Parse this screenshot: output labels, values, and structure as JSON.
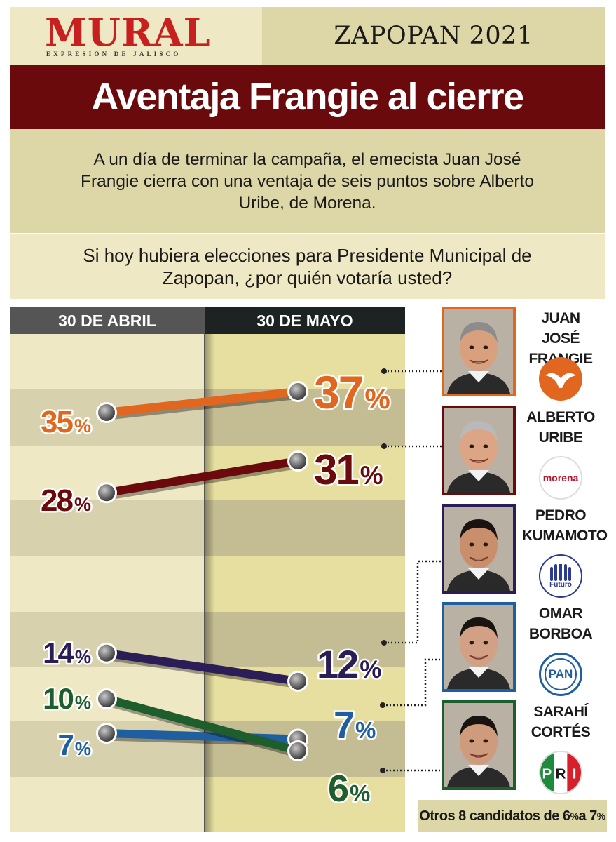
{
  "masthead": {
    "logo": "MURAL",
    "tagline": "EXPRESIÓN DE JALISCO",
    "edition": "ZAPOPAN 2021"
  },
  "headline": "Aventaja Frangie al cierre",
  "lede": "A un día de terminar la campaña, el emecista Juan José Frangie cierra con una ventaja de seis puntos sobre Alberto Uribe, de Morena.",
  "question": "Si hoy hubiera elecciones para Presidente Municipal de Zapopan, ¿por quién votaría usted?",
  "chart_data": {
    "type": "line",
    "x": [
      "30 DE ABRIL",
      "30 DE MAYO"
    ],
    "unit": "%",
    "series": [
      {
        "name": "JUAN JOSÉ FRANGIE",
        "values": [
          35,
          37
        ],
        "color": "#e1661f",
        "party": "MC"
      },
      {
        "name": "ALBERTO URIBE",
        "values": [
          28,
          31
        ],
        "color": "#6b0a0d",
        "party": "morena"
      },
      {
        "name": "PEDRO KUMAMOTO",
        "values": [
          14,
          12
        ],
        "color": "#2b1e57",
        "party": "Futuro"
      },
      {
        "name": "OMAR BORBOA",
        "values": [
          7,
          7
        ],
        "color": "#1f5fa0",
        "party": "PAN"
      },
      {
        "name": "SARAHÍ CORTÉS",
        "values": [
          10,
          6
        ],
        "color": "#1e5d2c",
        "party": "PRI"
      }
    ],
    "footnote": "Otros 8 candidatos de 6% a 7%"
  },
  "candidates": [
    {
      "name_line1": "JUAN JOSÉ",
      "name_line2": "FRANGIE",
      "party_label": "",
      "frame_color": "#e1661f",
      "logo_icon": "movimiento-ciudadano-eagle-icon"
    },
    {
      "name_line1": "ALBERTO",
      "name_line2": "URIBE",
      "party_label": "morena",
      "frame_color": "#6b0a0d",
      "logo_icon": "morena-logo"
    },
    {
      "name_line1": "PEDRO",
      "name_line2": "KUMAMOTO",
      "party_label": "Futuro",
      "frame_color": "#2b1e57",
      "logo_icon": "futuro-hands-icon"
    },
    {
      "name_line1": "OMAR",
      "name_line2": "BORBOA",
      "party_label": "PAN",
      "frame_color": "#1f5fa0",
      "logo_icon": "pan-logo"
    },
    {
      "name_line1": "SARAHÍ",
      "name_line2": "CORTÉS",
      "party_label": "PRI",
      "frame_color": "#1e5d2c",
      "logo_icon": "pri-logo"
    }
  ],
  "footnote_parts": {
    "text1": "Otros 8 candidatos de 6",
    "pct1": "%",
    "text2": " a 7",
    "pct2": "%"
  }
}
